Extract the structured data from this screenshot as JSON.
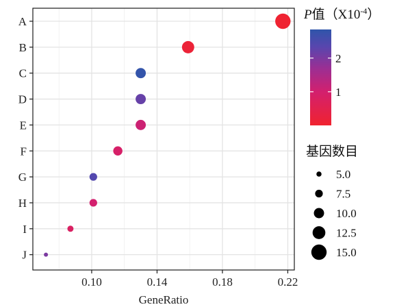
{
  "chart_data": {
    "type": "scatter",
    "x_label": "GeneRatio",
    "x_ticks": [
      "0.10",
      "0.14",
      "0.18",
      "0.22"
    ],
    "x_tick_values": [
      0.1,
      0.14,
      0.18,
      0.22
    ],
    "xlim": [
      0.064,
      0.224
    ],
    "categories": [
      "A",
      "B",
      "C",
      "D",
      "E",
      "F",
      "G",
      "H",
      "I",
      "J"
    ],
    "points": [
      {
        "term": "A",
        "gene_ratio": 0.217,
        "count": 15,
        "p_value": 0.05
      },
      {
        "term": "B",
        "gene_ratio": 0.159,
        "count": 12,
        "p_value": 0.15
      },
      {
        "term": "C",
        "gene_ratio": 0.13,
        "count": 10,
        "p_value": 2.8
      },
      {
        "term": "D",
        "gene_ratio": 0.13,
        "count": 10,
        "p_value": 2.2
      },
      {
        "term": "E",
        "gene_ratio": 0.13,
        "count": 10,
        "p_value": 1.1
      },
      {
        "term": "F",
        "gene_ratio": 0.116,
        "count": 9,
        "p_value": 0.9
      },
      {
        "term": "G",
        "gene_ratio": 0.101,
        "count": 7.5,
        "p_value": 2.4
      },
      {
        "term": "H",
        "gene_ratio": 0.101,
        "count": 7.5,
        "p_value": 1.0
      },
      {
        "term": "I",
        "gene_ratio": 0.087,
        "count": 6,
        "p_value": 0.8
      },
      {
        "term": "J",
        "gene_ratio": 0.072,
        "count": 4,
        "p_value": 2.0
      }
    ],
    "color_legend": {
      "title_italic": "P",
      "title_rest": "值（X10",
      "title_sup": "-4",
      "title_close": "）",
      "ticks": [
        "2",
        "1"
      ],
      "tick_values": [
        2,
        1
      ],
      "range": [
        0,
        2.85
      ],
      "colors": [
        "#f0232f",
        "#d3206e",
        "#9a2f94",
        "#5846ae",
        "#2f55aa"
      ]
    },
    "size_legend": {
      "title": "基因数目",
      "labels": [
        "5.0",
        "7.5",
        "10.0",
        "12.5",
        "15.0"
      ],
      "values": [
        5.0,
        7.5,
        10.0,
        12.5,
        15.0
      ]
    },
    "grid": true
  }
}
